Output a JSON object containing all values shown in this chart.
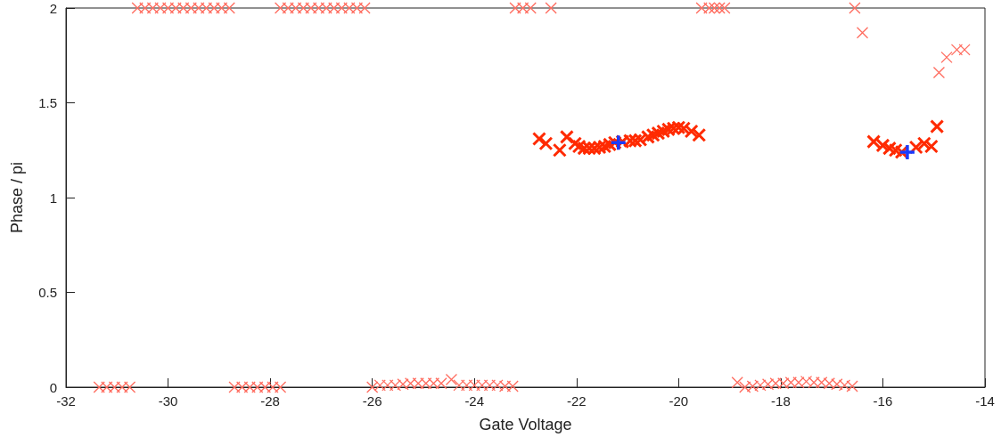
{
  "chart_data": {
    "type": "scatter",
    "xlabel": "Gate Voltage",
    "ylabel": "Phase / pi",
    "xlim": [
      -32,
      -14
    ],
    "xticks": [
      -32,
      -30,
      -28,
      -26,
      -24,
      -22,
      -20,
      -18,
      -16,
      -14
    ],
    "ylim": [
      0,
      2
    ],
    "yticks": [
      0,
      0.5,
      1,
      1.5,
      2
    ],
    "grid": false,
    "series": [
      {
        "color": "#ff6b5e",
        "marker": "cross",
        "x": [
          -30.6,
          -30.45,
          -30.3,
          -30.15,
          -30,
          -29.85,
          -29.7,
          -29.55,
          -29.4,
          -29.25,
          -29.1,
          -28.95,
          -28.8,
          -27.8,
          -27.65,
          -27.5,
          -27.35,
          -27.2,
          -27.05,
          -26.9,
          -26.75,
          -26.6,
          -26.45,
          -26.3,
          -26.15,
          -23.2,
          -23.05,
          -22.9,
          -22.5,
          -19.55,
          -19.4,
          -19.3,
          -19.2,
          -19.1,
          -16.55,
          -16.4,
          -14.9,
          -14.75,
          -14.55,
          -14.4,
          -31.35,
          -31.2,
          -31.05,
          -30.9,
          -30.75,
          -28.7,
          -28.55,
          -28.4,
          -28.25,
          -28.1,
          -27.95,
          -27.8,
          -26,
          -25.85,
          -25.7,
          -25.55,
          -25.4,
          -25.25,
          -25.1,
          -24.95,
          -24.8,
          -24.65,
          -24.45,
          -24.3,
          -24.15,
          -24,
          -23.85,
          -23.7,
          -23.55,
          -23.4,
          -23.25,
          -18.85,
          -18.7,
          -18.55,
          -18.4,
          -18.25,
          -18.1,
          -17.95,
          -17.8,
          -17.65,
          -17.5,
          -17.35,
          -17.2,
          -17.05,
          -16.9,
          -16.75,
          -16.6
        ],
        "values": [
          2,
          2,
          2,
          2,
          2,
          2,
          2,
          2,
          2,
          2,
          2,
          2,
          2,
          2,
          2,
          2,
          2,
          2,
          2,
          2,
          2,
          2,
          2,
          2,
          2,
          2,
          2,
          2,
          2,
          2,
          2,
          2,
          2,
          2,
          2,
          1.87,
          1.66,
          1.74,
          1.78,
          1.78,
          0,
          0,
          0,
          0,
          0,
          0,
          0,
          0,
          0,
          0,
          0,
          0,
          0,
          0.01,
          0.01,
          0.01,
          0.015,
          0.02,
          0.02,
          0.02,
          0.02,
          0.02,
          0.04,
          0.01,
          0.01,
          0.01,
          0.01,
          0.01,
          0.01,
          0.005,
          0.005,
          0.025,
          0,
          0.005,
          0.01,
          0.015,
          0.02,
          0.02,
          0.025,
          0.025,
          0.03,
          0.025,
          0.025,
          0.02,
          0.015,
          0.01,
          0.005
        ]
      },
      {
        "color": "#ff2a00",
        "marker": "cross",
        "x": [
          -22.73,
          -22.6,
          -22.33,
          -22.19,
          -22.03,
          -21.95,
          -21.85,
          -21.75,
          -21.65,
          -21.55,
          -21.45,
          -21.35,
          -21.25,
          -21.1,
          -20.95,
          -20.85,
          -20.75,
          -20.6,
          -20.5,
          -20.4,
          -20.3,
          -20.2,
          -20.1,
          -20,
          -19.9,
          -19.75,
          -19.6,
          -16.18,
          -16,
          -15.87,
          -15.75,
          -15.63,
          -15.35,
          -15.19,
          -15.05,
          -14.94
        ],
        "values": [
          1.31,
          1.285,
          1.25,
          1.32,
          1.285,
          1.27,
          1.26,
          1.26,
          1.26,
          1.265,
          1.27,
          1.28,
          1.29,
          1.295,
          1.3,
          1.3,
          1.305,
          1.32,
          1.33,
          1.34,
          1.35,
          1.36,
          1.365,
          1.37,
          1.365,
          1.35,
          1.33,
          1.295,
          1.275,
          1.26,
          1.25,
          1.24,
          1.265,
          1.285,
          1.27,
          1.375
        ]
      },
      {
        "color": "#1a3cff",
        "marker": "plus",
        "x": [
          -21.18,
          -15.52
        ],
        "values": [
          1.29,
          1.24
        ]
      }
    ]
  }
}
